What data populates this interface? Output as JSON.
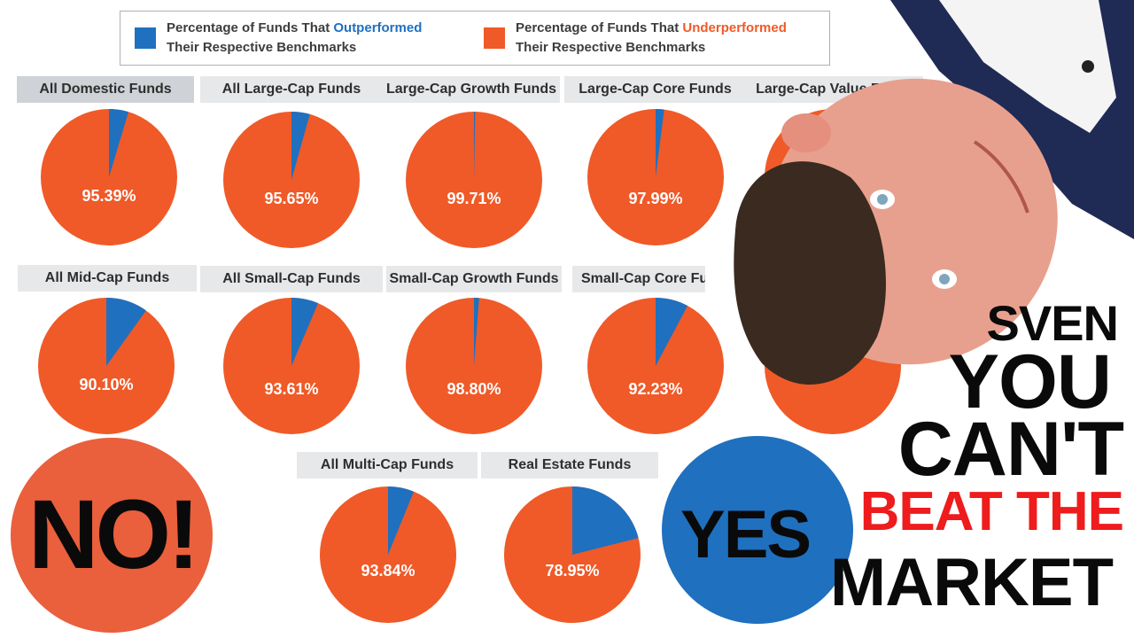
{
  "legend": {
    "outperformed": {
      "prefix": "Percentage of Funds That ",
      "highlight": "Outperformed",
      "line2": "Their Respective Benchmarks",
      "color": "#1f70bf"
    },
    "underperformed": {
      "prefix": "Percentage of Funds That ",
      "highlight": "Underperformed",
      "line2": "Their Respective Benchmarks",
      "color": "#ef5a28"
    }
  },
  "chart_data": [
    {
      "type": "pie",
      "title": "All Domestic Funds",
      "series": [
        {
          "name": "Outperformed",
          "value": 4.61
        },
        {
          "name": "Underperformed",
          "value": 95.39
        }
      ],
      "label": "95.39%"
    },
    {
      "type": "pie",
      "title": "All Large-Cap Funds",
      "series": [
        {
          "name": "Outperformed",
          "value": 4.35
        },
        {
          "name": "Underperformed",
          "value": 95.65
        }
      ],
      "label": "95.65%"
    },
    {
      "type": "pie",
      "title": "Large-Cap Growth Funds",
      "series": [
        {
          "name": "Outperformed",
          "value": 0.29
        },
        {
          "name": "Underperformed",
          "value": 99.71
        }
      ],
      "label": "99.71%"
    },
    {
      "type": "pie",
      "title": "Large-Cap Core Funds",
      "series": [
        {
          "name": "Outperformed",
          "value": 2.01
        },
        {
          "name": "Underperformed",
          "value": 97.99
        }
      ],
      "label": "97.99%"
    },
    {
      "type": "pie",
      "title": "Large-Cap Value Funds",
      "series": [
        {
          "name": "Outperformed",
          "value": 3.0
        },
        {
          "name": "Underperformed",
          "value": 97.0
        }
      ],
      "label": ""
    },
    {
      "type": "pie",
      "title": "All Mid-Cap Funds",
      "series": [
        {
          "name": "Outperformed",
          "value": 9.9
        },
        {
          "name": "Underperformed",
          "value": 90.1
        }
      ],
      "label": "90.10%"
    },
    {
      "type": "pie",
      "title": "All Small-Cap Funds",
      "series": [
        {
          "name": "Outperformed",
          "value": 6.39
        },
        {
          "name": "Underperformed",
          "value": 93.61
        }
      ],
      "label": "93.61%"
    },
    {
      "type": "pie",
      "title": "Small-Cap Growth Funds",
      "series": [
        {
          "name": "Outperformed",
          "value": 1.2
        },
        {
          "name": "Underperformed",
          "value": 98.8
        }
      ],
      "label": "98.80%"
    },
    {
      "type": "pie",
      "title": "Small-Cap Core Fu",
      "series": [
        {
          "name": "Outperformed",
          "value": 7.77
        },
        {
          "name": "Underperformed",
          "value": 92.23
        }
      ],
      "label": "92.23%"
    },
    {
      "type": "pie",
      "title": "",
      "series": [
        {
          "name": "Outperformed",
          "value": 4.0
        },
        {
          "name": "Underperformed",
          "value": 96.0
        }
      ],
      "label": ""
    },
    {
      "type": "pie",
      "title": "All Multi-Cap Funds",
      "series": [
        {
          "name": "Outperformed",
          "value": 6.16
        },
        {
          "name": "Underperformed",
          "value": 93.84
        }
      ],
      "label": "93.84%"
    },
    {
      "type": "pie",
      "title": "Real Estate Funds",
      "series": [
        {
          "name": "Outperformed",
          "value": 21.05
        },
        {
          "name": "Underperformed",
          "value": 78.95
        }
      ],
      "label": "78.95%"
    }
  ],
  "overlay": {
    "no_text": "NO!",
    "yes_text": "YES",
    "no_circle_color": "#ea5f3c",
    "yes_circle_color": "#1f70bf",
    "title_lines": [
      {
        "text": "SVEN",
        "color": "#0a0a0a"
      },
      {
        "text": "YOU",
        "color": "#0a0a0a"
      },
      {
        "text": "CAN'T",
        "color": "#0a0a0a"
      },
      {
        "text": "BEAT THE",
        "color": "#ee1c1c"
      },
      {
        "text": "MARKET",
        "color": "#0a0a0a"
      }
    ]
  }
}
